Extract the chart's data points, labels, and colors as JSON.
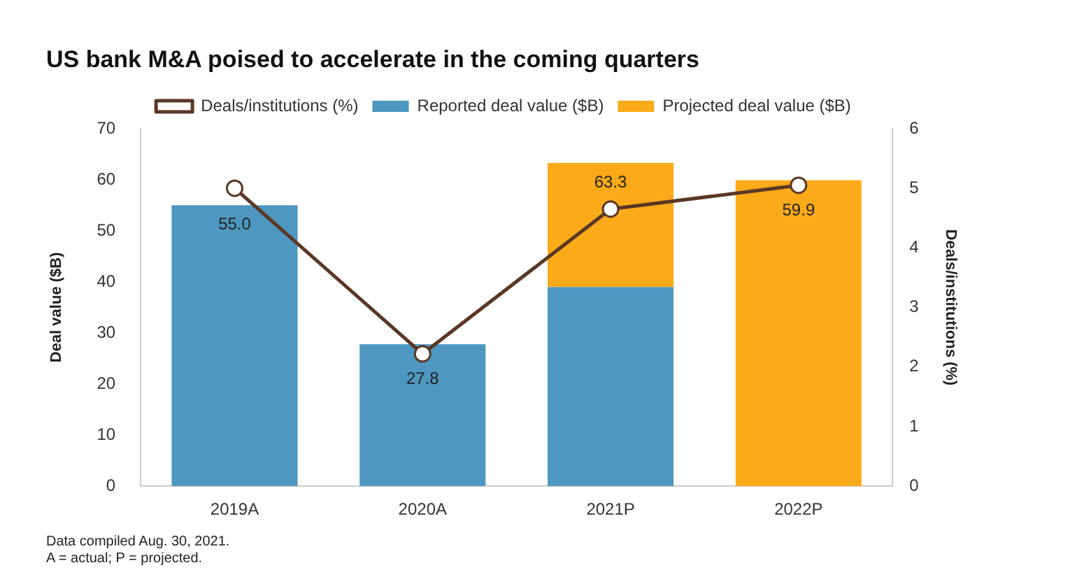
{
  "chart_data": {
    "type": "bar",
    "title": "US bank M&A poised to accelerate in the coming quarters",
    "categories": [
      "2019A",
      "2020A",
      "2021P",
      "2022P"
    ],
    "stacked": true,
    "series": [
      {
        "name": "Reported deal value ($B)",
        "color": "#4e97c1",
        "values": [
          55.0,
          27.8,
          39.0,
          null
        ]
      },
      {
        "name": "Projected deal value ($B)",
        "color": "#fbaa19",
        "values": [
          null,
          null,
          24.3,
          59.9
        ]
      },
      {
        "name": "Deals/institutions (%)",
        "type": "line",
        "axis": "y2",
        "color": "#5a3825",
        "marker": "circle",
        "values": [
          5.0,
          2.22,
          4.65,
          5.05
        ]
      }
    ],
    "totals": [
      "55.0",
      "27.8",
      "63.3",
      "59.9"
    ],
    "ylabel": "Deal value ($B)",
    "y2label": "Deals/institutions (%)",
    "ylim": [
      0,
      70
    ],
    "yticks": [
      0,
      10,
      20,
      30,
      40,
      50,
      60,
      70
    ],
    "y2lim": [
      0,
      6
    ],
    "y2ticks": [
      0,
      1,
      2,
      3,
      4,
      5,
      6
    ],
    "legend": "top",
    "grid": false,
    "annotations": [
      "Data compiled Aug. 30, 2021.",
      "A = actual; P = projected."
    ]
  }
}
